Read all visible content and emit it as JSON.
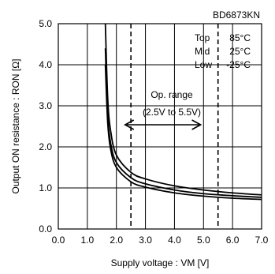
{
  "chart_data": {
    "type": "line",
    "part_number": "BD6873KN",
    "xlabel": "Supply voltage : VM [V]",
    "ylabel": "Output ON resistance : RON [Ω]",
    "xlim": [
      0.0,
      7.0
    ],
    "ylim": [
      0.0,
      5.0
    ],
    "xticks": [
      0.0,
      1.0,
      2.0,
      3.0,
      4.0,
      5.0,
      6.0,
      7.0
    ],
    "xtick_labels": [
      "0.0",
      "1.0",
      "2.0",
      "3.0",
      "4.0",
      "5.0",
      "6.0",
      "7.0"
    ],
    "yticks": [
      0.0,
      1.0,
      2.0,
      3.0,
      4.0,
      5.0
    ],
    "ytick_labels": [
      "0.0",
      "1.0",
      "2.0",
      "3.0",
      "4.0",
      "5.0"
    ],
    "grid": true,
    "legend": [
      {
        "label": "Top",
        "value": "85°C"
      },
      {
        "label": "Mid",
        "value": "25°C"
      },
      {
        "label": "Low",
        "value": "-25°C"
      }
    ],
    "annotation": {
      "title": "Op. range",
      "range_text": "(2.5V to 5.5V)",
      "from": 2.5,
      "to": 5.5
    },
    "series": [
      {
        "x": [
          1.62,
          1.7,
          1.8,
          2.0,
          2.5,
          3.0,
          4.0,
          5.0,
          6.0,
          7.0
        ],
        "values": [
          5.0,
          3.2,
          2.4,
          1.8,
          1.38,
          1.22,
          1.05,
          0.95,
          0.88,
          0.83
        ]
      },
      {
        "x": [
          1.62,
          1.7,
          1.8,
          2.0,
          2.5,
          3.0,
          4.0,
          5.0,
          6.0,
          7.0
        ],
        "values": [
          4.4,
          2.8,
          2.1,
          1.62,
          1.25,
          1.1,
          0.95,
          0.86,
          0.81,
          0.77
        ]
      },
      {
        "x": [
          1.62,
          1.7,
          1.8,
          2.0,
          2.5,
          3.0,
          4.0,
          5.0,
          6.0,
          7.0
        ],
        "values": [
          4.0,
          2.6,
          1.95,
          1.5,
          1.15,
          1.02,
          0.88,
          0.8,
          0.75,
          0.72
        ]
      }
    ]
  }
}
